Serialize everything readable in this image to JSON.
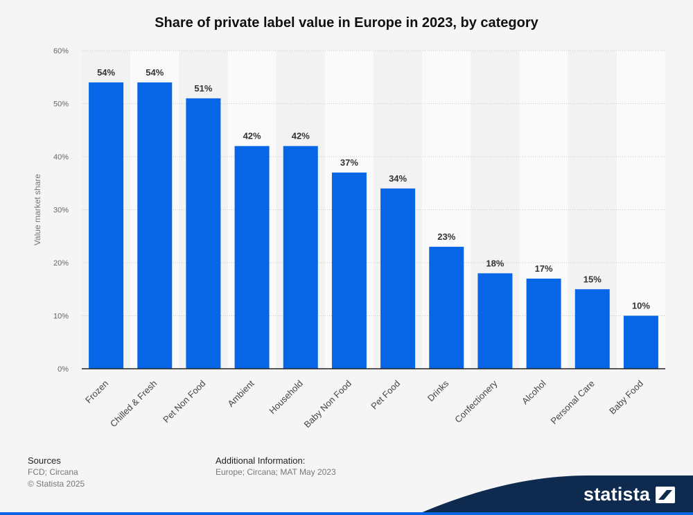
{
  "chart_data": {
    "type": "bar",
    "title": "Share of private label value in Europe in 2023, by category",
    "xlabel": "",
    "ylabel": "Value market share",
    "ylim": [
      0,
      60
    ],
    "yticks": [
      "0%",
      "10%",
      "20%",
      "30%",
      "40%",
      "50%",
      "60%"
    ],
    "grid": true,
    "categories": [
      "Frozen",
      "Chilled & Fresh",
      "Pet Non Food",
      "Ambient",
      "Household",
      "Baby Non Food",
      "Pet Food",
      "Drinks",
      "Confectionery",
      "Alcohol",
      "Personal Care",
      "Baby Food"
    ],
    "values": [
      54,
      54,
      51,
      42,
      42,
      37,
      34,
      23,
      18,
      17,
      15,
      10
    ],
    "value_labels": [
      "54%",
      "54%",
      "51%",
      "42%",
      "42%",
      "37%",
      "34%",
      "23%",
      "18%",
      "17%",
      "15%",
      "10%"
    ],
    "bar_color": "#0766e6"
  },
  "footer": {
    "sources_heading": "Sources",
    "sources_line1": "FCD; Circana",
    "sources_line2": "© Statista 2025",
    "additional_heading": "Additional Information:",
    "additional_text": "Europe; Circana; MAT May 2023",
    "brand": "statista",
    "brand_band_color": "#0f2a4f"
  }
}
